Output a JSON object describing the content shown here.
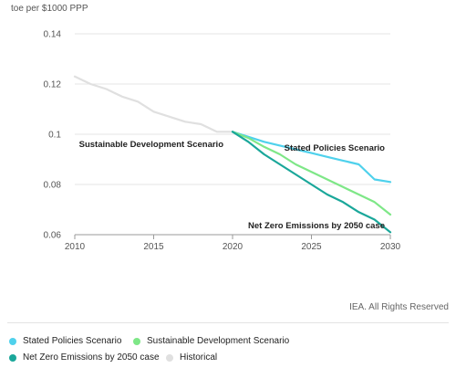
{
  "chart_data": {
    "type": "line",
    "ylabel": "toe per $1000 PPP",
    "xlim": [
      2010,
      2030
    ],
    "ylim": [
      0.06,
      0.14
    ],
    "xticks": [
      2010,
      2015,
      2020,
      2025,
      2030
    ],
    "yticks": [
      0.06,
      0.08,
      0.1,
      0.12,
      0.14
    ],
    "ytick_labels": [
      "0.06",
      "0.08",
      "0.1",
      "0.12",
      "0.14"
    ],
    "grid": "horizontal",
    "legend_position": "bottom",
    "series": [
      {
        "name": "Historical",
        "color": "#e0e0e0",
        "x": [
          2010,
          2011,
          2012,
          2013,
          2014,
          2015,
          2016,
          2017,
          2018,
          2019,
          2020
        ],
        "y": [
          0.123,
          0.12,
          0.118,
          0.115,
          0.113,
          0.109,
          0.107,
          0.105,
          0.104,
          0.101,
          0.101
        ]
      },
      {
        "name": "Stated Policies Scenario",
        "color": "#4fd1ec",
        "x": [
          2020,
          2021,
          2022,
          2023,
          2024,
          2025,
          2026,
          2027,
          2028,
          2029,
          2030
        ],
        "y": [
          0.101,
          0.099,
          0.097,
          0.0955,
          0.094,
          0.0925,
          0.091,
          0.0895,
          0.088,
          0.082,
          0.081
        ]
      },
      {
        "name": "Sustainable Development Scenario",
        "color": "#7ee787",
        "x": [
          2020,
          2021,
          2022,
          2023,
          2024,
          2025,
          2026,
          2027,
          2028,
          2029,
          2030
        ],
        "y": [
          0.101,
          0.0985,
          0.095,
          0.092,
          0.088,
          0.085,
          0.082,
          0.079,
          0.076,
          0.073,
          0.068
        ]
      },
      {
        "name": "Net Zero Emissions by 2050 case",
        "color": "#1aa79a",
        "x": [
          2020,
          2021,
          2022,
          2023,
          2024,
          2025,
          2026,
          2027,
          2028,
          2029,
          2030
        ],
        "y": [
          0.101,
          0.097,
          0.092,
          0.088,
          0.084,
          0.08,
          0.076,
          0.073,
          0.069,
          0.066,
          0.061
        ]
      }
    ],
    "annotations": [
      {
        "text": "Sustainable Development Scenario",
        "x": 2020,
        "y": 0.1
      },
      {
        "text": "Stated Policies Scenario",
        "x": 2030,
        "y": 0.0935
      },
      {
        "text": "Net Zero Emissions by 2050 case",
        "x": 2030,
        "y": 0.0625
      }
    ]
  },
  "credit": "IEA. All Rights Reserved",
  "legend": [
    {
      "name": "Stated Policies Scenario",
      "color": "#4fd1ec"
    },
    {
      "name": "Sustainable Development Scenario",
      "color": "#7ee787"
    },
    {
      "name": "Net Zero Emissions by 2050 case",
      "color": "#1aa79a"
    },
    {
      "name": "Historical",
      "color": "#e0e0e0"
    }
  ]
}
